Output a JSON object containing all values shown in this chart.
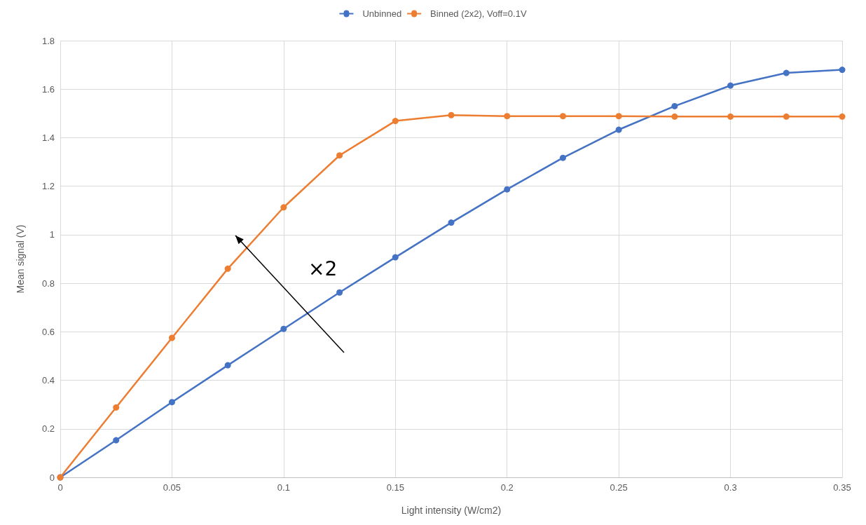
{
  "chart_data": {
    "type": "line",
    "xlabel": "Light intensity (W/cm2)",
    "ylabel": "Mean signal (V)",
    "x": [
      0,
      0.025,
      0.05,
      0.075,
      0.1,
      0.125,
      0.15,
      0.175,
      0.2,
      0.225,
      0.25,
      0.275,
      0.3,
      0.325,
      0.35
    ],
    "series": [
      {
        "name": "Unbinned",
        "color": "#4472c4",
        "values": [
          0,
          0.153,
          0.31,
          0.462,
          0.612,
          0.762,
          0.907,
          1.05,
          1.187,
          1.317,
          1.433,
          1.53,
          1.615,
          1.667,
          1.68
        ]
      },
      {
        "name": "Binned (2x2), Voff=0.1V",
        "color": "#ed7d31",
        "values": [
          0,
          0.288,
          0.575,
          0.86,
          1.113,
          1.327,
          1.469,
          1.493,
          1.489,
          1.489,
          1.489,
          1.487,
          1.487,
          1.487,
          1.487
        ]
      }
    ],
    "xlim": [
      0,
      0.35
    ],
    "xticks": [
      0,
      0.05,
      0.1,
      0.15,
      0.2,
      0.25,
      0.3,
      0.35
    ],
    "ylim": [
      0,
      1.8
    ],
    "yticks": [
      0,
      0.2,
      0.4,
      0.6,
      0.8,
      1,
      1.2,
      1.4,
      1.6,
      1.8
    ],
    "annotations": [
      "×2"
    ],
    "grid": true,
    "legend": "top",
    "marker": "circle",
    "line_style": "solid"
  }
}
